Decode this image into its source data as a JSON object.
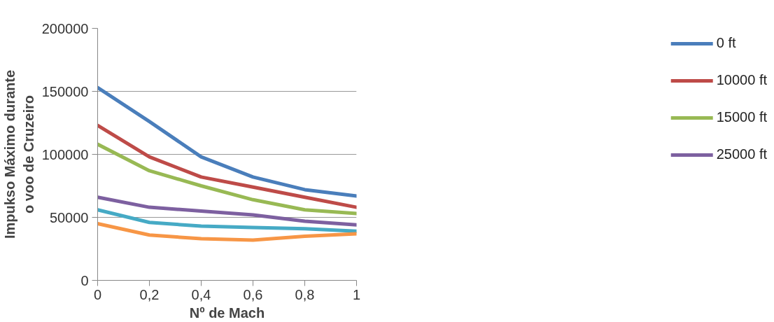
{
  "chart_data": {
    "type": "line",
    "xlabel": "Nº de Mach",
    "ylabel": "Impukso Máximo durante o voo de Cruzeiro",
    "x": [
      0,
      0.2,
      0.4,
      0.6,
      0.8,
      1
    ],
    "xlim": [
      0,
      1
    ],
    "ylim": [
      0,
      200000
    ],
    "xticks": [
      0,
      {
        "value": 0.2,
        "label": "0,2"
      },
      {
        "value": 0.4,
        "label": "0,4"
      },
      {
        "value": 0.6,
        "label": "0,6"
      },
      {
        "value": 0.8,
        "label": "0,8"
      },
      1
    ],
    "yticks": [
      0,
      50000,
      100000,
      150000,
      200000
    ],
    "grid": "y",
    "legend": "right",
    "line_style": "solid",
    "series": [
      {
        "name": "0 ft",
        "color": "#4a7ebb",
        "values": [
          153000,
          126000,
          98000,
          82000,
          72000,
          67000
        ]
      },
      {
        "name": "10000 ft",
        "color": "#be4b48",
        "values": [
          123000,
          98000,
          82000,
          74000,
          66000,
          58000
        ]
      },
      {
        "name": "15000 ft",
        "color": "#98b954",
        "values": [
          108000,
          87000,
          75000,
          64000,
          56000,
          53000
        ]
      },
      {
        "name": "25000 ft",
        "color": "#7d60a0",
        "values": [
          66000,
          58000,
          55000,
          52000,
          47000,
          44000
        ]
      },
      {
        "color": "#46aac5",
        "values": [
          56000,
          46000,
          43000,
          42000,
          41000,
          39000
        ]
      },
      {
        "color": "#f79646",
        "values": [
          45000,
          36000,
          33000,
          32000,
          35000,
          37000
        ]
      }
    ]
  }
}
